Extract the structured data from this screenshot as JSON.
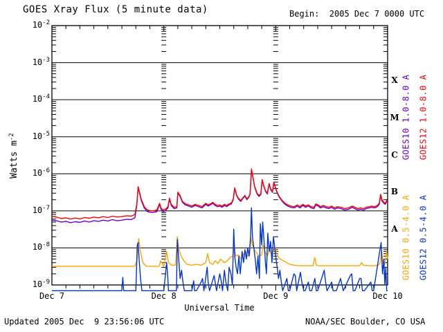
{
  "footer": {
    "updated": "Updated 2005 Dec  9 23:56:06 UTC",
    "source": "NOAA/SEC Boulder, CO USA"
  },
  "chart_data": {
    "type": "line",
    "title": "GOES Xray Flux (5 minute data)",
    "begin_label": "Begin:  2005 Dec 7 0000 UTC",
    "xlabel": "Universal Time",
    "ylabel_text": "Watts m",
    "ylabel_sup": "-2",
    "x_range_hours": [
      0,
      72
    ],
    "x_tick_hours": [
      0,
      24,
      48,
      72
    ],
    "x_tick_labels": [
      "Dec 7",
      "Dec 8",
      "Dec 9",
      "Dec 10"
    ],
    "x_minor_tick_hours": 3,
    "y_scale": "log",
    "y_exponent_ticks": [
      -2,
      -3,
      -4,
      -5,
      -6,
      -7,
      -8,
      -9
    ],
    "grid": {
      "horizontal_decade_lines": [
        -3,
        -4,
        -5,
        -6,
        -7,
        -8
      ],
      "vertical_day_rulers_hours": [
        24,
        48
      ]
    },
    "flare_classes": [
      {
        "label": "X",
        "log_center": -3.5
      },
      {
        "label": "M",
        "log_center": -4.5
      },
      {
        "label": "C",
        "log_center": -5.5
      },
      {
        "label": "B",
        "log_center": -6.5
      },
      {
        "label": "A",
        "log_center": -7.5
      }
    ],
    "axis_color": "#000000",
    "background_color": "#ffffff",
    "legend_position": "right-rotated",
    "series": [
      {
        "name": "GOES10 1.0-8.0 A",
        "color": "#6600cc",
        "t": [
          0,
          1,
          2,
          3,
          4,
          5,
          6,
          7,
          8,
          9,
          10,
          11,
          12,
          13,
          14,
          15,
          16,
          17,
          17.8,
          18.2,
          18.5,
          18.8,
          19.2,
          19.8,
          20.5,
          21.5,
          22.5,
          23.1,
          23.4,
          23.8,
          24.3,
          24.9,
          25.2,
          25.6,
          26.2,
          26.8,
          27.0,
          27.5,
          28.0,
          28.6,
          29.3,
          30,
          30.7,
          31.5,
          32.2,
          33,
          33.5,
          34,
          34.5,
          35,
          35.5,
          36,
          36.5,
          37,
          37.5,
          38,
          38.5,
          38.9,
          39.2,
          39.6,
          40,
          40.5,
          41,
          41.4,
          41.8,
          42.2,
          42.5,
          42.8,
          43.1,
          43.5,
          44,
          44.4,
          44.8,
          45.1,
          45.4,
          45.8,
          46.2,
          46.6,
          46.9,
          47.3,
          47.6,
          47.9,
          48.3,
          48.8,
          49.4,
          50,
          50.6,
          51.2,
          52,
          52.6,
          53.2,
          53.8,
          54.4,
          55,
          55.6,
          56.2,
          56.6,
          57.1,
          57.6,
          58.2,
          58.8,
          59.4,
          60,
          60.6,
          61.2,
          62,
          62.8,
          63.6,
          64.4,
          65,
          65.6,
          66.2,
          66.8,
          67.4,
          68,
          68.6,
          69.2,
          69.8,
          70.2,
          70.5,
          70.8,
          71.2,
          71.5,
          71.8,
          72
        ],
        "v": [
          5.6e-08,
          5.4e-08,
          5e-08,
          5.2e-08,
          4.8e-08,
          5.1e-08,
          4.9e-08,
          5.3e-08,
          5e-08,
          5.4e-08,
          5.2e-08,
          5.6e-08,
          5.3e-08,
          5.8e-08,
          5.4e-08,
          5.6e-08,
          5.9e-08,
          5.8e-08,
          6.5e-08,
          1.4e-07,
          4.3e-07,
          3e-07,
          1.85e-07,
          1.2e-07,
          9.5e-08,
          9e-08,
          9.5e-08,
          1.5e-07,
          1.1e-07,
          9.5e-08,
          1e-07,
          1.2e-07,
          2.05e-07,
          1.4e-07,
          1.15e-07,
          1.2e-07,
          3.05e-07,
          2.45e-07,
          1.7e-07,
          1.45e-07,
          1.35e-07,
          1.25e-07,
          1.4e-07,
          1.3e-07,
          1.2e-07,
          1.5e-07,
          1.35e-07,
          1.45e-07,
          1.6e-07,
          1.4e-07,
          1.3e-07,
          1.35e-07,
          1.25e-07,
          1.4e-07,
          1.3e-07,
          1.45e-07,
          1.55e-07,
          2e-07,
          4.05e-07,
          2.6e-07,
          2.1e-07,
          1.8e-07,
          2.2e-07,
          2.5e-07,
          2e-07,
          2.3e-07,
          2.8e-07,
          1.3e-06,
          8.2e-07,
          4.3e-07,
          2.85e-07,
          2.45e-07,
          2.75e-07,
          6.7e-07,
          4.8e-07,
          3.35e-07,
          2.85e-07,
          5.3e-07,
          3.8e-07,
          3.15e-07,
          5.8e-07,
          4.3e-07,
          3.05e-07,
          2.3e-07,
          1.8e-07,
          1.5e-07,
          1.35e-07,
          1.25e-07,
          1.2e-07,
          1.35e-07,
          1.2e-07,
          1.4e-07,
          1.25e-07,
          1.35e-07,
          1.2e-07,
          1.15e-07,
          1.45e-07,
          1.35e-07,
          1.2e-07,
          1.3e-07,
          1.2e-07,
          1.15e-07,
          1.25e-07,
          1.1e-07,
          1.2e-07,
          1.15e-07,
          1.05e-07,
          1.1e-07,
          1.25e-07,
          1.15e-07,
          1.05e-07,
          1.1e-07,
          1.05e-07,
          1.15e-07,
          1.2e-07,
          1.25e-07,
          1.2e-07,
          1.3e-07,
          1.5e-07,
          2.6e-07,
          1.85e-07,
          1.6e-07,
          1.5e-07,
          1.8e-07,
          1.7e-07
        ]
      },
      {
        "name": "GOES12 1.0-8.0 A",
        "color": "#ff0000",
        "t": [
          0,
          1,
          2,
          3,
          4,
          5,
          6,
          7,
          8,
          9,
          10,
          11,
          12,
          13,
          14,
          15,
          16,
          17,
          17.8,
          18.2,
          18.5,
          18.8,
          19.2,
          19.8,
          20.5,
          21.5,
          22.5,
          23.1,
          23.4,
          23.8,
          24.3,
          24.9,
          25.2,
          25.6,
          26.2,
          26.8,
          27.0,
          27.5,
          28.0,
          28.6,
          29.3,
          30,
          30.7,
          31.5,
          32.2,
          33,
          33.5,
          34,
          34.5,
          35,
          35.5,
          36,
          36.5,
          37,
          37.5,
          38,
          38.5,
          38.9,
          39.2,
          39.6,
          40,
          40.5,
          41,
          41.4,
          41.8,
          42.2,
          42.5,
          42.8,
          43.1,
          43.5,
          44,
          44.4,
          44.8,
          45.1,
          45.4,
          45.8,
          46.2,
          46.6,
          46.9,
          47.3,
          47.6,
          47.9,
          48.3,
          48.8,
          49.4,
          50,
          50.6,
          51.2,
          52,
          52.6,
          53.2,
          53.8,
          54.4,
          55,
          55.6,
          56.2,
          56.6,
          57.1,
          57.6,
          58.2,
          58.8,
          59.4,
          60,
          60.6,
          61.2,
          62,
          62.8,
          63.6,
          64.4,
          65,
          65.6,
          66.2,
          66.8,
          67.4,
          68,
          68.6,
          69.2,
          69.8,
          70.2,
          70.5,
          70.8,
          71.2,
          71.5,
          71.8,
          72
        ],
        "v": [
          7e-08,
          6.8e-08,
          6.2e-08,
          6.5e-08,
          6e-08,
          6.4e-08,
          6.1e-08,
          6.6e-08,
          6.3e-08,
          6.8e-08,
          6.5e-08,
          7e-08,
          6.6e-08,
          7.2e-08,
          6.8e-08,
          7e-08,
          7.4e-08,
          7.2e-08,
          8e-08,
          1.5e-07,
          4.5e-07,
          3.2e-07,
          2e-07,
          1.3e-07,
          1.05e-07,
          1e-07,
          1.05e-07,
          1.6e-07,
          1.2e-07,
          1.05e-07,
          1.1e-07,
          1.3e-07,
          2.2e-07,
          1.5e-07,
          1.25e-07,
          1.3e-07,
          3.2e-07,
          2.6e-07,
          1.8e-07,
          1.55e-07,
          1.45e-07,
          1.35e-07,
          1.5e-07,
          1.4e-07,
          1.3e-07,
          1.6e-07,
          1.45e-07,
          1.55e-07,
          1.7e-07,
          1.5e-07,
          1.4e-07,
          1.45e-07,
          1.35e-07,
          1.5e-07,
          1.4e-07,
          1.55e-07,
          1.65e-07,
          2.1e-07,
          4.2e-07,
          2.7e-07,
          2.2e-07,
          1.9e-07,
          2.3e-07,
          2.6e-07,
          2.1e-07,
          2.4e-07,
          2.9e-07,
          1.35e-06,
          8.5e-07,
          4.5e-07,
          3e-07,
          2.6e-07,
          2.9e-07,
          7e-07,
          5e-07,
          3.5e-07,
          3e-07,
          5.5e-07,
          4e-07,
          3.3e-07,
          6e-07,
          4.5e-07,
          3.2e-07,
          2.4e-07,
          1.9e-07,
          1.6e-07,
          1.45e-07,
          1.35e-07,
          1.3e-07,
          1.45e-07,
          1.3e-07,
          1.5e-07,
          1.35e-07,
          1.45e-07,
          1.3e-07,
          1.25e-07,
          1.55e-07,
          1.45e-07,
          1.3e-07,
          1.4e-07,
          1.3e-07,
          1.25e-07,
          1.35e-07,
          1.2e-07,
          1.3e-07,
          1.25e-07,
          1.15e-07,
          1.2e-07,
          1.35e-07,
          1.25e-07,
          1.15e-07,
          1.2e-07,
          1.15e-07,
          1.25e-07,
          1.3e-07,
          1.35e-07,
          1.3e-07,
          1.4e-07,
          1.6e-07,
          2.8e-07,
          2e-07,
          1.7e-07,
          1.6e-07,
          1.9e-07,
          1.8e-07
        ]
      },
      {
        "name": "GOES10 0.5-4.0 A",
        "color": "#ffa500",
        "t": [
          0,
          4,
          8,
          12,
          16,
          17.8,
          18.3,
          18.6,
          19,
          19.5,
          20.2,
          21,
          22,
          23,
          23.3,
          24,
          24.6,
          25,
          25.6,
          26.5,
          26.9,
          27.2,
          27.7,
          28.3,
          29,
          30,
          31,
          32,
          33,
          33.4,
          33.8,
          34.5,
          35,
          35.6,
          36.2,
          37,
          37.6,
          38.2,
          38.8,
          39.1,
          39.4,
          40,
          40.6,
          41.2,
          41.6,
          42,
          42.4,
          42.7,
          43,
          43.4,
          44,
          44.4,
          45,
          45.3,
          45.7,
          46.2,
          46.7,
          47,
          47.5,
          47.9,
          48.4,
          49,
          49.6,
          50.4,
          51,
          52,
          53,
          54,
          55,
          56,
          56.4,
          56.7,
          57.2,
          58,
          59,
          60,
          61,
          62,
          63,
          64,
          65,
          66,
          66.4,
          66.8,
          68,
          69,
          70,
          70.4,
          70.7,
          71,
          71.4,
          71.8,
          72
        ],
        "v": [
          3.2e-09,
          3.2e-09,
          3.2e-09,
          3.2e-09,
          3.2e-09,
          3.2e-09,
          5e-09,
          1.8e-08,
          8e-09,
          4e-09,
          3.2e-09,
          3.2e-09,
          3.2e-09,
          3.2e-09,
          4.5e-09,
          3.2e-09,
          8e-09,
          4e-09,
          3.4e-09,
          3.4e-09,
          2e-08,
          1e-08,
          6e-09,
          4.5e-09,
          3.6e-09,
          3.4e-09,
          3.6e-09,
          3.4e-09,
          4e-09,
          7e-09,
          4e-09,
          3.6e-09,
          4.5e-09,
          3.8e-09,
          5e-09,
          4e-09,
          4.5e-09,
          5.5e-09,
          6e-09,
          1.2e-08,
          6e-09,
          6.5e-09,
          5e-09,
          7e-09,
          8e-09,
          6e-09,
          6.5e-09,
          1.8e-08,
          1.2e-08,
          9e-09,
          7e-09,
          6e-09,
          6.5e-09,
          1.2e-08,
          8e-09,
          6e-09,
          9e-09,
          7e-09,
          8e-09,
          1e-08,
          6e-09,
          5e-09,
          4.5e-09,
          4e-09,
          3.6e-09,
          3.4e-09,
          3.3e-09,
          3.3e-09,
          3.3e-09,
          3.3e-09,
          5.5e-09,
          3.4e-09,
          3.3e-09,
          3.3e-09,
          3.3e-09,
          3.3e-09,
          3.3e-09,
          3.3e-09,
          3.3e-09,
          3.3e-09,
          3.3e-09,
          3.3e-09,
          4e-09,
          3.4e-09,
          3.3e-09,
          3.3e-09,
          3.4e-09,
          4e-09,
          9e-09,
          4e-09,
          3.6e-09,
          8e-09,
          5e-09,
          6e-09
        ]
      },
      {
        "name": "GOES12 0.5-4.0 A",
        "color": "#0033dd",
        "t": [
          0,
          3,
          6,
          9,
          12,
          15,
          15.2,
          15.4,
          18,
          18.3,
          18.5,
          18.7,
          19,
          19.3,
          20,
          24,
          24.6,
          24.8,
          25,
          25.3,
          26.7,
          26.9,
          27.2,
          27.5,
          27.8,
          28.1,
          28.4,
          30,
          30.4,
          30.6,
          31,
          32,
          32.3,
          32.6,
          33.3,
          33.5,
          33.8,
          34.8,
          35,
          35.3,
          36,
          36.3,
          36.6,
          37,
          37.3,
          37.7,
          38,
          38.4,
          38.7,
          39,
          39.2,
          39.5,
          39.8,
          40.1,
          40.4,
          40.8,
          41.1,
          41.4,
          41.7,
          42,
          42.3,
          42.6,
          42.8,
          43,
          43.3,
          43.6,
          43.9,
          44.2,
          44.5,
          44.7,
          45,
          45.2,
          45.5,
          45.8,
          46,
          46.3,
          46.6,
          46.9,
          47.2,
          47.5,
          47.8,
          48,
          48.3,
          48.6,
          48.9,
          49.2,
          49.5,
          50.4,
          50.7,
          51,
          51.9,
          52.2,
          52.5,
          53.3,
          53.6,
          54,
          54.3,
          55,
          55.3,
          55.7,
          56.4,
          56.7,
          57,
          58.4,
          58.7,
          59,
          60,
          60.3,
          61,
          61.9,
          62.2,
          62.5,
          64,
          64.3,
          64.6,
          65,
          66,
          66.3,
          66.6,
          67,
          68.4,
          68.7,
          69,
          70.3,
          70.6,
          70.9,
          71.2,
          71.4,
          71.6,
          71.8,
          72
        ],
        "v": [
          7e-10,
          7e-10,
          7e-10,
          7e-10,
          7e-10,
          7e-10,
          1.6e-09,
          7e-10,
          7e-10,
          1.2e-08,
          1.4e-08,
          5e-09,
          1.5e-09,
          7e-10,
          7e-10,
          7e-10,
          4e-09,
          2e-09,
          7e-10,
          7e-10,
          7e-10,
          1.7e-08,
          5e-09,
          1.5e-09,
          2.5e-09,
          1.2e-09,
          7e-10,
          7e-10,
          1.3e-09,
          7e-10,
          7e-10,
          1.2e-09,
          1.5e-09,
          7e-10,
          3e-09,
          1.2e-09,
          7e-10,
          1.8e-09,
          1.2e-09,
          7e-10,
          2e-09,
          1.3e-09,
          7e-10,
          2.5e-09,
          1.2e-09,
          7e-10,
          3e-09,
          2e-09,
          1e-09,
          3.2e-08,
          6e-09,
          3e-09,
          2e-09,
          6e-09,
          2e-09,
          8e-09,
          4e-09,
          9e-09,
          5e-09,
          1e-08,
          6e-09,
          2e-08,
          1.2e-07,
          2e-08,
          1e-08,
          5e-09,
          2e-09,
          6e-09,
          1.5e-09,
          4.5e-08,
          1.2e-08,
          5e-08,
          1.5e-08,
          4e-09,
          2e-09,
          2.5e-08,
          8e-09,
          1.5e-08,
          4e-09,
          2e-08,
          1e-08,
          6e-09,
          3e-09,
          1.5e-09,
          2.5e-09,
          1.2e-09,
          7e-10,
          1.5e-09,
          7e-10,
          7e-10,
          2e-09,
          1.8e-09,
          7e-10,
          2.2e-09,
          1.2e-09,
          7e-10,
          7e-10,
          1.2e-09,
          7e-10,
          7e-10,
          1.5e-09,
          7e-10,
          7e-10,
          2.5e-09,
          1.2e-09,
          7e-10,
          1.2e-09,
          7e-10,
          7e-10,
          1.5e-09,
          1e-09,
          7e-10,
          1.8e-09,
          2e-09,
          7e-10,
          7e-10,
          1.5e-09,
          1.5e-09,
          7e-10,
          7e-10,
          1.2e-09,
          7e-10,
          7e-10,
          8e-09,
          1.4e-08,
          2e-09,
          5e-09,
          1e-09,
          3e-09,
          7e-10,
          7e-10
        ]
      }
    ]
  }
}
